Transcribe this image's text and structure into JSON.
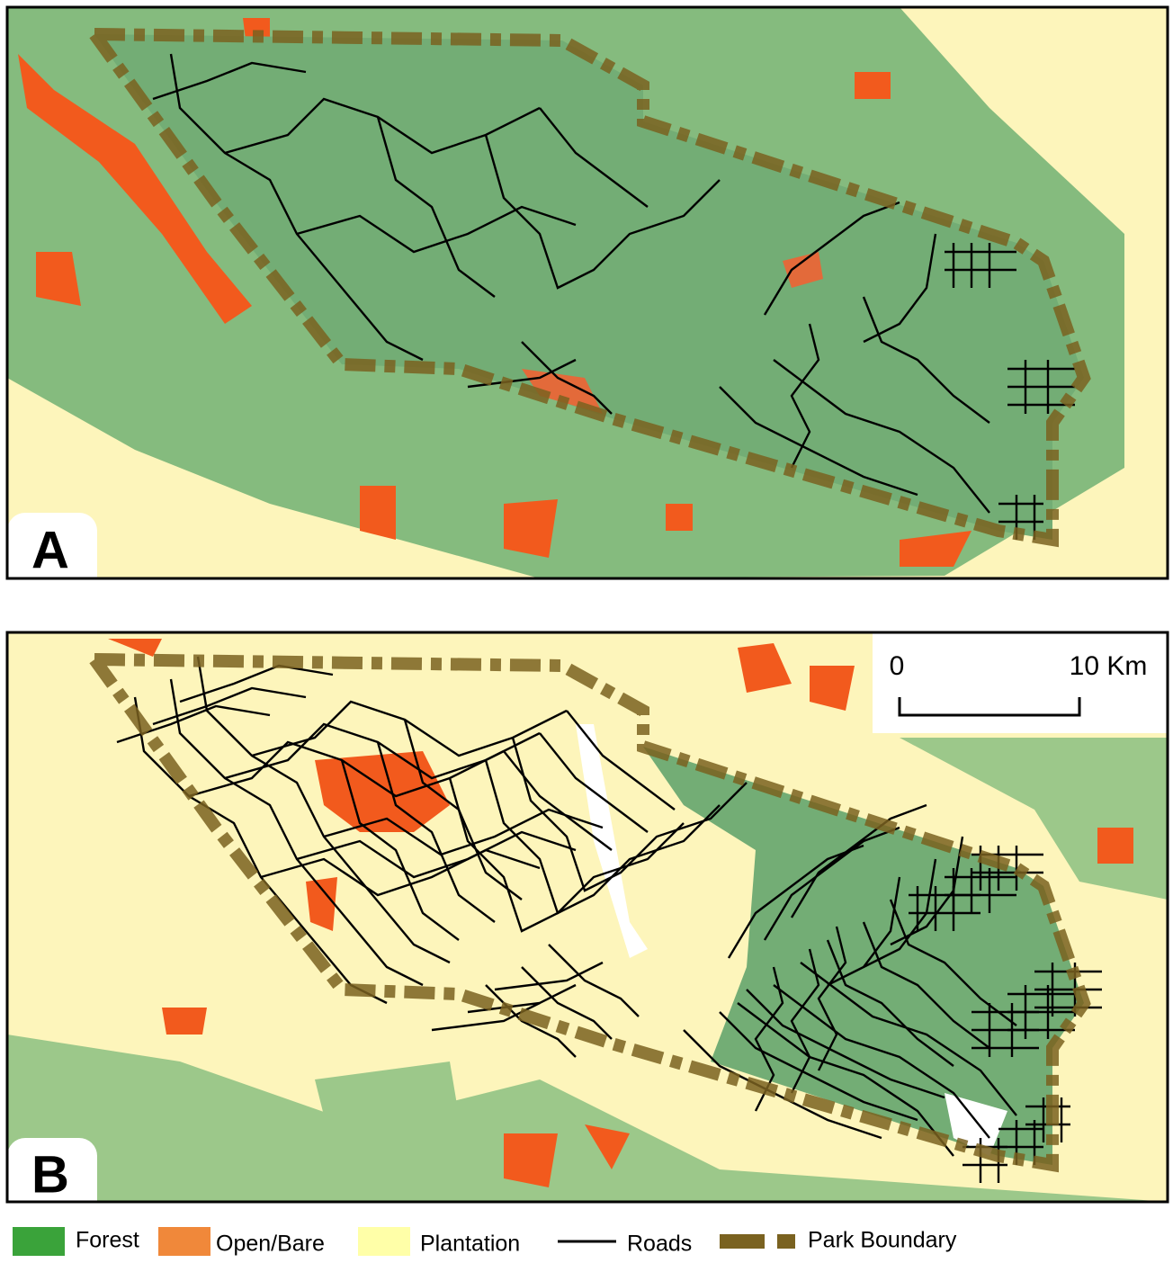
{
  "panels": [
    {
      "label": "A"
    },
    {
      "label": "B"
    }
  ],
  "scale_bar": {
    "start": "0",
    "end": "10 Km"
  },
  "legend": [
    "Forest",
    "Open/Bare",
    "Plantation",
    "Roads",
    "Park Boundary"
  ]
}
